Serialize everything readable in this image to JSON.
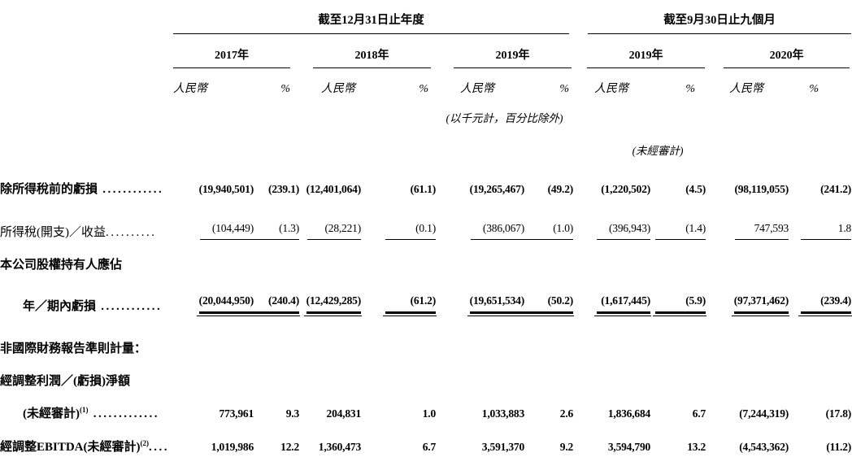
{
  "document": {
    "table": {
      "groups": [
        {
          "title": "截至12月31日止年度",
          "years": [
            "2017年",
            "2018年",
            "2019年"
          ]
        },
        {
          "title": "截至9月30日止九個月",
          "years": [
            "2019年",
            "2020年"
          ]
        }
      ],
      "currency_header": "人民幣",
      "percent_header": "%",
      "unit_note": "(以千元計，百分比除外)",
      "unaudited_note": "(未經審計)",
      "rows": [
        {
          "label": "除所得稅前的虧損",
          "dots": " ............",
          "sup": "",
          "bold": true,
          "indent": false,
          "underline": "none",
          "values": [
            "(19,940,501)",
            "(239.1)",
            "(12,401,064)",
            "(61.1)",
            "(19,265,467)",
            "(49.2)",
            "(1,220,502)",
            "(4.5)",
            "(98,119,055)",
            "(241.2)"
          ]
        },
        {
          "label": "所得稅(開支)／收益",
          "dots": "..........",
          "sup": "",
          "bold": false,
          "indent": false,
          "underline": "single",
          "values": [
            "(104,449)",
            "(1.3)",
            "(28,221)",
            "(0.1)",
            "(386,067)",
            "(1.0)",
            "(396,943)",
            "(1.4)",
            "747,593",
            "1.8"
          ]
        },
        {
          "label": "本公司股權持有人應佔",
          "dots": "",
          "sup": "",
          "bold": true,
          "indent": false,
          "underline": "none",
          "values": []
        },
        {
          "label": "年／期內虧損",
          "dots": " ............",
          "sup": "",
          "bold": true,
          "indent": true,
          "underline": "double",
          "values": [
            "(20,044,950)",
            "(240.4)",
            "(12,429,285)",
            "(61.2)",
            "(19,651,534)",
            "(50.2)",
            "(1,617,445)",
            "(5.9)",
            "(97,371,462)",
            "(239.4)"
          ]
        },
        {
          "label": "非國際財務報告準則計量：",
          "dots": "",
          "sup": "",
          "bold": true,
          "indent": false,
          "underline": "none",
          "values": []
        },
        {
          "label": "經調整利潤／(虧損)淨額",
          "dots": "",
          "sup": "",
          "bold": true,
          "indent": false,
          "underline": "none",
          "values": []
        },
        {
          "label": "(未經審計)",
          "dots": " .............",
          "sup": "(1)",
          "bold": true,
          "indent": true,
          "underline": "none",
          "values": [
            "773,961",
            "9.3",
            "204,831",
            "1.0",
            "1,033,883",
            "2.6",
            "1,836,684",
            "6.7",
            "(7,244,319)",
            "(17.8)"
          ]
        },
        {
          "label": "經調整EBITDA(未經審計)",
          "dots": "....",
          "sup": "(2)",
          "bold": true,
          "indent": false,
          "underline": "none",
          "values": [
            "1,019,986",
            "12.2",
            "1,360,473",
            "6.7",
            "3,591,370",
            "9.2",
            "3,594,790",
            "13.2",
            "(4,543,362)",
            "(11.2)"
          ]
        }
      ]
    }
  }
}
